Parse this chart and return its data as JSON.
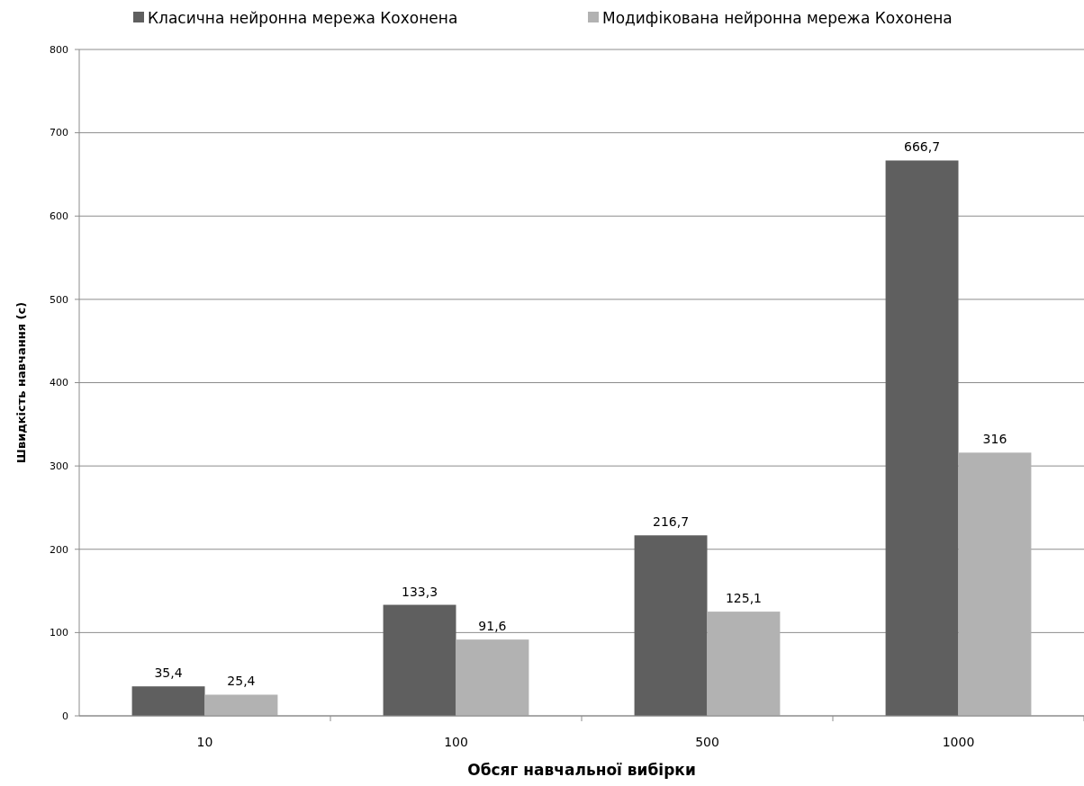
{
  "chart_data": {
    "type": "bar",
    "xlabel": "Обсяг навчальної вибірки",
    "ylabel": "Швидкість навчання  (с)",
    "categories": [
      "10",
      "100",
      "500",
      "1000"
    ],
    "series": [
      {
        "name": "Класична нейронна мережа Кохонена",
        "color": "#5f5f5f",
        "values": [
          35.4,
          133.3,
          216.7,
          666.7
        ],
        "value_labels": [
          "35,4",
          "133,3",
          "216,7",
          "666,7"
        ]
      },
      {
        "name": "Модифікована нейронна мережа Кохонена",
        "color": "#b2b2b2",
        "values": [
          25.4,
          91.6,
          125.1,
          316
        ],
        "value_labels": [
          "25,4",
          "91,6",
          "125,1",
          "316"
        ]
      }
    ],
    "ylim": [
      0,
      800
    ],
    "yticks": [
      0,
      100,
      200,
      300,
      400,
      500,
      600,
      700,
      800
    ],
    "grid": "y",
    "legend": "top"
  }
}
